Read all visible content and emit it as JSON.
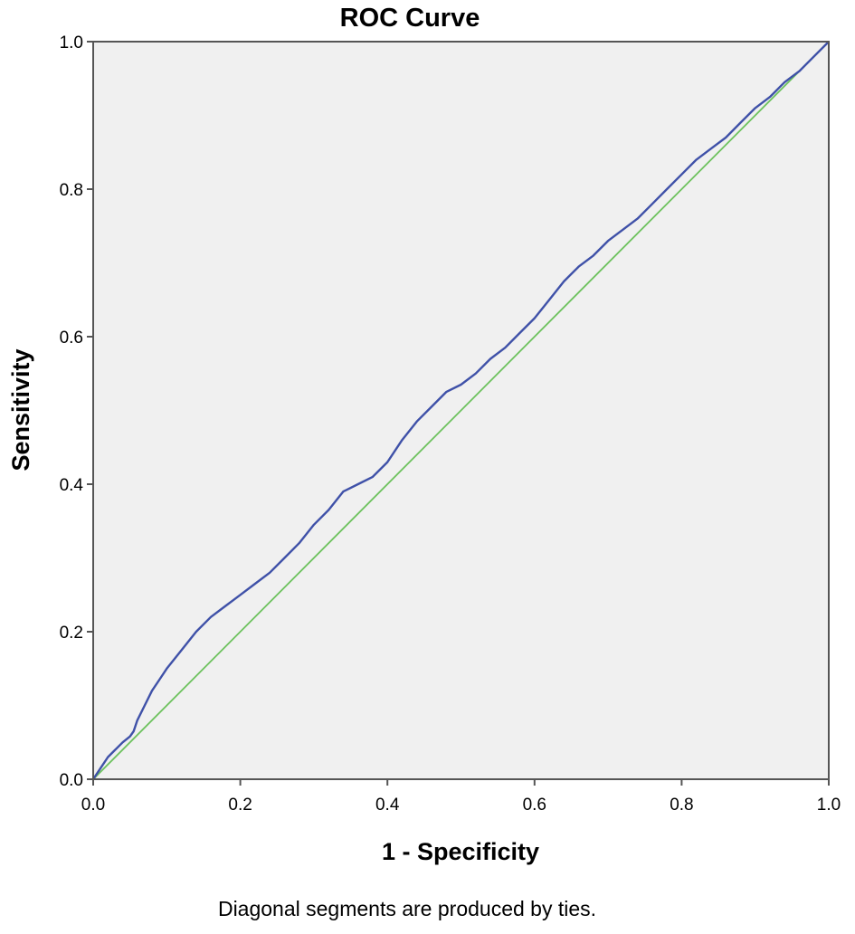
{
  "chart_data": {
    "type": "line",
    "title": "ROC Curve",
    "xlabel": "1 - Specificity",
    "ylabel": "Sensitivity",
    "footnote": "Diagonal segments are produced by ties.",
    "xlim": [
      0.0,
      1.0
    ],
    "ylim": [
      0.0,
      1.0
    ],
    "x_ticks": [
      "0.0",
      "0.2",
      "0.4",
      "0.6",
      "0.8",
      "1.0"
    ],
    "y_ticks": [
      "0.0",
      "0.2",
      "0.4",
      "0.6",
      "0.8",
      "1.0"
    ],
    "x_tick_values": [
      0.0,
      0.2,
      0.4,
      0.6,
      0.8,
      1.0
    ],
    "y_tick_values": [
      0.0,
      0.2,
      0.4,
      0.6,
      0.8,
      1.0
    ],
    "grid": false,
    "background": "#f0f0f0",
    "series": [
      {
        "role": "roc-curve",
        "color": "#3f51a8",
        "x": [
          0.0,
          0.01,
          0.02,
          0.03,
          0.04,
          0.05,
          0.055,
          0.06,
          0.07,
          0.08,
          0.09,
          0.1,
          0.12,
          0.14,
          0.16,
          0.18,
          0.2,
          0.22,
          0.24,
          0.26,
          0.28,
          0.3,
          0.32,
          0.34,
          0.36,
          0.38,
          0.4,
          0.42,
          0.44,
          0.46,
          0.48,
          0.5,
          0.52,
          0.54,
          0.56,
          0.58,
          0.6,
          0.62,
          0.64,
          0.66,
          0.68,
          0.7,
          0.72,
          0.74,
          0.76,
          0.78,
          0.8,
          0.82,
          0.84,
          0.86,
          0.88,
          0.9,
          0.92,
          0.94,
          0.96,
          0.98,
          1.0
        ],
        "y": [
          0.0,
          0.015,
          0.03,
          0.04,
          0.05,
          0.058,
          0.065,
          0.08,
          0.1,
          0.12,
          0.135,
          0.15,
          0.175,
          0.2,
          0.22,
          0.235,
          0.25,
          0.265,
          0.28,
          0.3,
          0.32,
          0.345,
          0.365,
          0.39,
          0.4,
          0.41,
          0.43,
          0.46,
          0.485,
          0.505,
          0.525,
          0.535,
          0.55,
          0.57,
          0.585,
          0.605,
          0.625,
          0.65,
          0.675,
          0.695,
          0.71,
          0.73,
          0.745,
          0.76,
          0.78,
          0.8,
          0.82,
          0.84,
          0.855,
          0.87,
          0.89,
          0.91,
          0.925,
          0.945,
          0.96,
          0.98,
          1.0
        ]
      },
      {
        "role": "reference-line",
        "color": "#6dc25e",
        "x": [
          0.0,
          1.0
        ],
        "y": [
          0.0,
          1.0
        ]
      }
    ]
  }
}
